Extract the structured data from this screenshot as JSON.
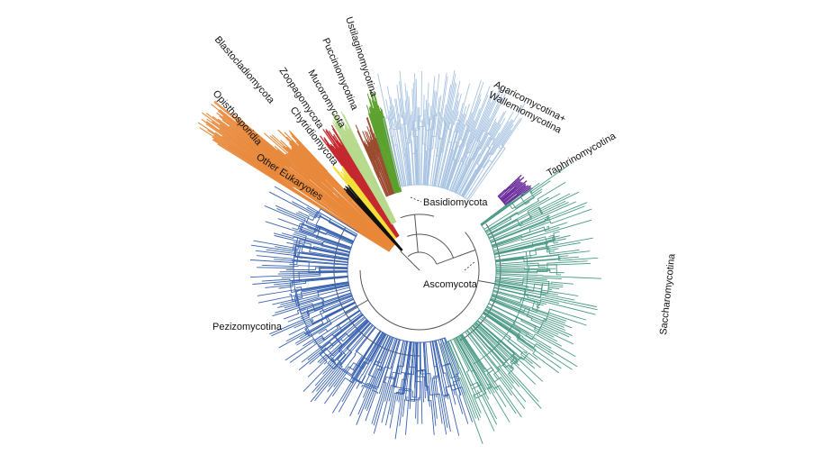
{
  "figure": {
    "clades": [
      {
        "key": "blastocladiomycota",
        "label": "Blastocladiomycota",
        "color": "#e8883a"
      },
      {
        "key": "opisthosporidia",
        "label": "Opisthosporidia",
        "color": "#e8883a"
      },
      {
        "key": "zoopagomycota",
        "label": "Zoopagomycota",
        "color": "#b6d98b"
      },
      {
        "key": "mucoromycota",
        "label": "Mucoromycota",
        "color": "#c5292f"
      },
      {
        "key": "chytridiomycota",
        "label": "Chytridiomycota",
        "color": "#f2df3a"
      },
      {
        "key": "other_eukaryotes",
        "label": "Other Eukaryotes",
        "color": "#111111"
      },
      {
        "key": "ustilaginomycotina",
        "label": "Ustilaginomycotina",
        "color": "#5aa02c"
      },
      {
        "key": "pucciniomycotina",
        "label": "Pucciniomycotina",
        "color": "#9a4a2e"
      },
      {
        "key": "agaricomycotina",
        "label": "Agaricomycotina+\nWallemiomycotina",
        "color": "#a9c4e2"
      },
      {
        "key": "taphrinomycotina",
        "label": "Taphrinomycotina",
        "color": "#6a2c9b"
      },
      {
        "key": "saccharomycotina",
        "label": "Saccharomycotina",
        "color": "#4a9a85"
      },
      {
        "key": "pezizomycotina",
        "label": "Pezizomycotina",
        "color": "#3a63b0"
      }
    ],
    "higher_taxa": [
      {
        "key": "basidiomycota",
        "label": "Basidiomycota"
      },
      {
        "key": "ascomycota",
        "label": "Ascomycota"
      }
    ],
    "backbone_color": "#555555"
  }
}
